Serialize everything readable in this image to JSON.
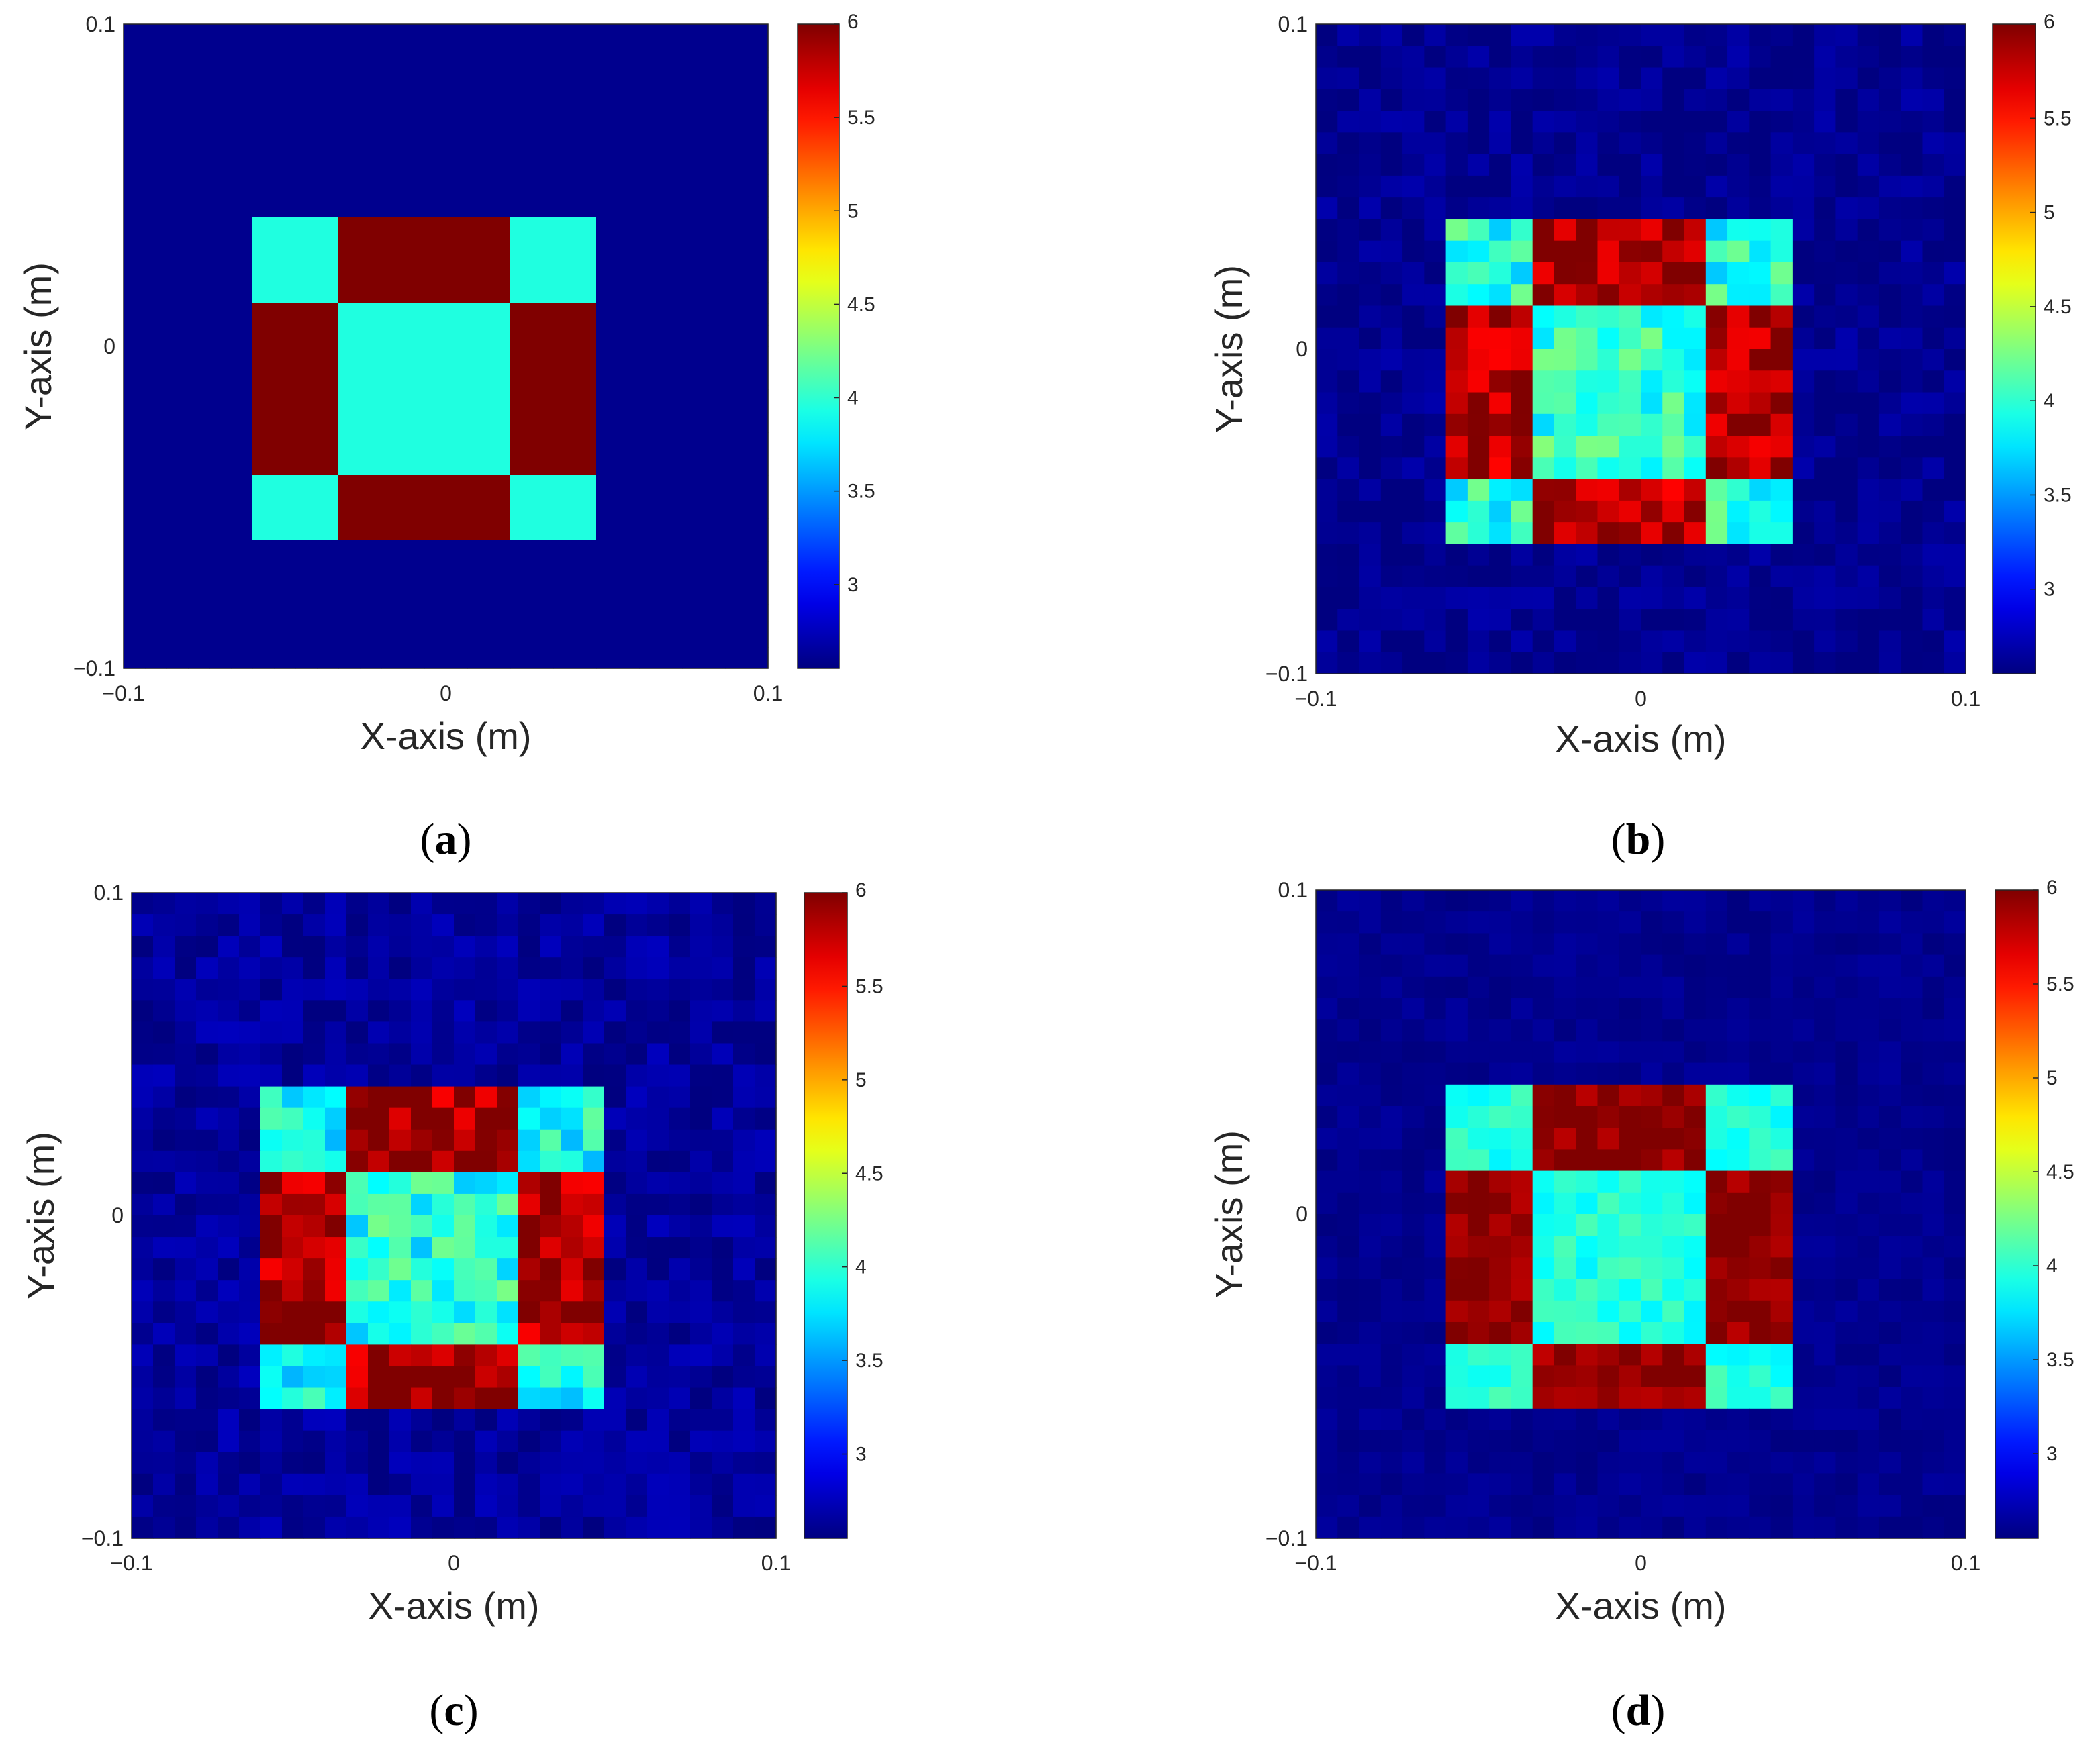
{
  "chart_data": [
    {
      "type": "heatmap",
      "panel_label": {
        "open": "(",
        "letter": "a",
        "close": ")"
      },
      "xlabel": "X-axis (m)",
      "ylabel": "Y-axis (m)",
      "xlim": [
        -0.1,
        0.1
      ],
      "ylim": [
        -0.1,
        0.1
      ],
      "xticks": [
        "−0.1",
        "0",
        "0.1"
      ],
      "yticks": [
        "−0.1",
        "0",
        "0.1"
      ],
      "grid_size": 30,
      "noise": 0.0,
      "seed": 1,
      "background_value": 2.6,
      "regions": [
        {
          "x": [
            -0.058,
            -0.033
          ],
          "y": [
            0.013,
            0.038
          ],
          "value": 3.95
        },
        {
          "x": [
            -0.033,
            0.02
          ],
          "y": [
            0.013,
            0.038
          ],
          "value": 6.0
        },
        {
          "x": [
            0.02,
            0.045
          ],
          "y": [
            0.013,
            0.038
          ],
          "value": 3.95
        },
        {
          "x": [
            -0.058,
            -0.033
          ],
          "y": [
            -0.038,
            0.013
          ],
          "value": 6.0
        },
        {
          "x": [
            -0.033,
            0.02
          ],
          "y": [
            -0.038,
            0.013
          ],
          "value": 3.95
        },
        {
          "x": [
            0.02,
            0.045
          ],
          "y": [
            -0.038,
            0.013
          ],
          "value": 6.0
        },
        {
          "x": [
            -0.058,
            -0.033
          ],
          "y": [
            -0.063,
            -0.038
          ],
          "value": 3.95
        },
        {
          "x": [
            -0.033,
            0.02
          ],
          "y": [
            -0.063,
            -0.038
          ],
          "value": 6.0
        },
        {
          "x": [
            0.02,
            0.045
          ],
          "y": [
            -0.063,
            -0.038
          ],
          "value": 3.95
        }
      ],
      "colorbar": {
        "range": [
          2.55,
          6.0
        ],
        "ticks": [
          "3",
          "3.5",
          "4",
          "4.5",
          "5",
          "5.5",
          "6"
        ],
        "colormap": "jet"
      }
    },
    {
      "type": "heatmap",
      "panel_label": {
        "open": "(",
        "letter": "b",
        "close": ")"
      },
      "xlabel": "X-axis (m)",
      "ylabel": "Y-axis (m)",
      "xlim": [
        -0.1,
        0.1
      ],
      "ylim": [
        -0.1,
        0.1
      ],
      "xticks": [
        "−0.1",
        "0",
        "0.1"
      ],
      "yticks": [
        "−0.1",
        "0",
        "0.1"
      ],
      "grid_size": 30,
      "noise": 0.3,
      "seed": 7,
      "background_value": 2.6,
      "regions": [
        {
          "x": [
            -0.058,
            -0.033
          ],
          "y": [
            0.013,
            0.038
          ],
          "value": 3.95
        },
        {
          "x": [
            -0.033,
            0.02
          ],
          "y": [
            0.013,
            0.038
          ],
          "value": 5.85
        },
        {
          "x": [
            0.02,
            0.045
          ],
          "y": [
            0.013,
            0.038
          ],
          "value": 3.95
        },
        {
          "x": [
            -0.058,
            -0.033
          ],
          "y": [
            -0.038,
            0.013
          ],
          "value": 5.85
        },
        {
          "x": [
            -0.033,
            0.02
          ],
          "y": [
            -0.038,
            0.013
          ],
          "value": 4.0
        },
        {
          "x": [
            0.02,
            0.045
          ],
          "y": [
            -0.038,
            0.013
          ],
          "value": 5.85
        },
        {
          "x": [
            -0.058,
            -0.033
          ],
          "y": [
            -0.063,
            -0.038
          ],
          "value": 3.95
        },
        {
          "x": [
            -0.033,
            0.02
          ],
          "y": [
            -0.063,
            -0.038
          ],
          "value": 5.85
        },
        {
          "x": [
            0.02,
            0.045
          ],
          "y": [
            -0.063,
            -0.038
          ],
          "value": 3.95
        }
      ],
      "colorbar": {
        "range": [
          2.55,
          6.0
        ],
        "ticks": [
          "3",
          "3.5",
          "4",
          "4.5",
          "5",
          "5.5",
          "6"
        ],
        "colormap": "jet"
      }
    },
    {
      "type": "heatmap",
      "panel_label": {
        "open": "(",
        "letter": "c",
        "close": ")"
      },
      "xlabel": "X-axis (m)",
      "ylabel": "Y-axis (m)",
      "xlim": [
        -0.1,
        0.1
      ],
      "ylim": [
        -0.1,
        0.1
      ],
      "xticks": [
        "−0.1",
        "0",
        "0.1"
      ],
      "yticks": [
        "−0.1",
        "0",
        "0.1"
      ],
      "grid_size": 30,
      "noise": 0.32,
      "seed": 23,
      "background_value": 2.65,
      "regions": [
        {
          "x": [
            -0.058,
            -0.033
          ],
          "y": [
            0.013,
            0.038
          ],
          "value": 3.9
        },
        {
          "x": [
            -0.033,
            0.02
          ],
          "y": [
            0.013,
            0.038
          ],
          "value": 5.9
        },
        {
          "x": [
            0.02,
            0.045
          ],
          "y": [
            0.013,
            0.038
          ],
          "value": 3.9
        },
        {
          "x": [
            -0.058,
            -0.033
          ],
          "y": [
            -0.038,
            0.013
          ],
          "value": 5.9
        },
        {
          "x": [
            -0.033,
            0.02
          ],
          "y": [
            -0.038,
            0.013
          ],
          "value": 3.95
        },
        {
          "x": [
            0.02,
            0.045
          ],
          "y": [
            -0.038,
            0.013
          ],
          "value": 5.9
        },
        {
          "x": [
            -0.058,
            -0.033
          ],
          "y": [
            -0.063,
            -0.038
          ],
          "value": 3.9
        },
        {
          "x": [
            -0.033,
            0.02
          ],
          "y": [
            -0.063,
            -0.038
          ],
          "value": 5.85
        },
        {
          "x": [
            0.02,
            0.045
          ],
          "y": [
            -0.063,
            -0.038
          ],
          "value": 3.9
        }
      ],
      "colorbar": {
        "range": [
          2.55,
          6.0
        ],
        "ticks": [
          "3",
          "3.5",
          "4",
          "4.5",
          "5",
          "5.5",
          "6"
        ],
        "colormap": "jet"
      }
    },
    {
      "type": "heatmap",
      "panel_label": {
        "open": "(",
        "letter": "d",
        "close": ")"
      },
      "xlabel": "X-axis (m)",
      "ylabel": "Y-axis (m)",
      "xlim": [
        -0.1,
        0.1
      ],
      "ylim": [
        -0.1,
        0.1
      ],
      "xticks": [
        "−0.1",
        "0",
        "0.1"
      ],
      "yticks": [
        "−0.1",
        "0",
        "0.1"
      ],
      "grid_size": 30,
      "noise": 0.15,
      "seed": 41,
      "background_value": 2.6,
      "regions": [
        {
          "x": [
            -0.058,
            -0.033
          ],
          "y": [
            0.013,
            0.038
          ],
          "value": 3.95
        },
        {
          "x": [
            -0.033,
            0.02
          ],
          "y": [
            0.013,
            0.038
          ],
          "value": 5.95
        },
        {
          "x": [
            0.02,
            0.045
          ],
          "y": [
            0.013,
            0.038
          ],
          "value": 3.95
        },
        {
          "x": [
            -0.058,
            -0.033
          ],
          "y": [
            -0.038,
            0.013
          ],
          "value": 5.95
        },
        {
          "x": [
            -0.033,
            0.02
          ],
          "y": [
            -0.038,
            0.013
          ],
          "value": 3.95
        },
        {
          "x": [
            0.02,
            0.045
          ],
          "y": [
            -0.038,
            0.013
          ],
          "value": 5.95
        },
        {
          "x": [
            -0.058,
            -0.033
          ],
          "y": [
            -0.063,
            -0.038
          ],
          "value": 3.95
        },
        {
          "x": [
            -0.033,
            0.02
          ],
          "y": [
            -0.063,
            -0.038
          ],
          "value": 5.9
        },
        {
          "x": [
            0.02,
            0.045
          ],
          "y": [
            -0.063,
            -0.038
          ],
          "value": 3.95
        }
      ],
      "colorbar": {
        "range": [
          2.55,
          6.0
        ],
        "ticks": [
          "3",
          "3.5",
          "4",
          "4.5",
          "5",
          "5.5",
          "6"
        ],
        "colormap": "jet"
      }
    }
  ]
}
